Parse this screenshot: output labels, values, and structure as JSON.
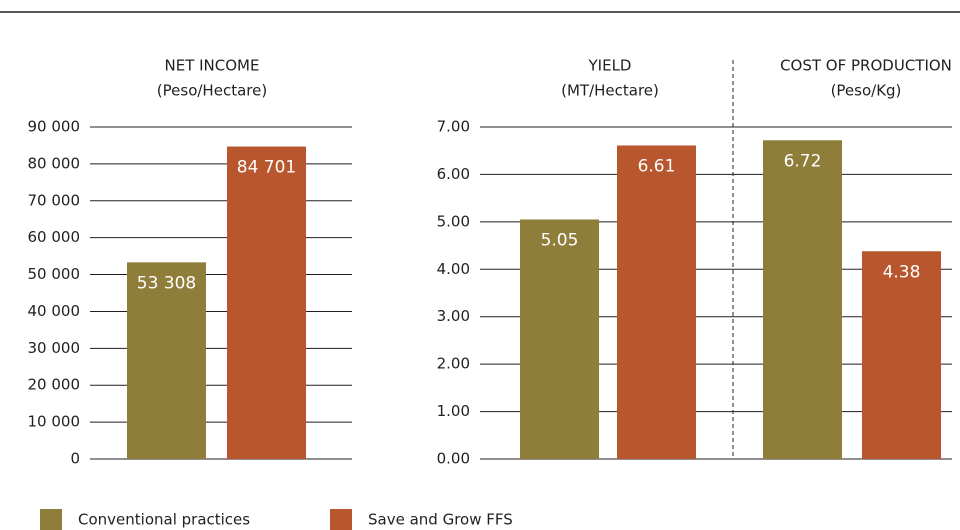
{
  "chart_data": [
    {
      "type": "bar",
      "title": "NET INCOME",
      "subtitle": "(Peso/Hectare)",
      "values": [
        53308,
        84701
      ],
      "value_labels": [
        "53 308",
        "84 701"
      ],
      "ylim": [
        0,
        90000
      ],
      "yticks": [
        0,
        {
          "value": 10000,
          "label": "10 000"
        },
        {
          "value": 20000,
          "label": "20 000"
        },
        {
          "value": 30000,
          "label": "30 000"
        },
        {
          "value": 40000,
          "label": "40 000"
        },
        {
          "value": 50000,
          "label": "50 000"
        },
        {
          "value": 60000,
          "label": "60 000"
        },
        {
          "value": 70000,
          "label": "70 000"
        },
        {
          "value": 80000,
          "label": "80 000"
        },
        {
          "value": 90000,
          "label": "90 000"
        }
      ]
    },
    {
      "type": "bar",
      "title": "YIELD",
      "subtitle": "(MT/Hectare)",
      "values": [
        5.05,
        6.61
      ],
      "value_labels": [
        "5.05",
        "6.61"
      ],
      "ylim": [
        0,
        7
      ],
      "yticks": [
        {
          "value": 0,
          "label": "0.00"
        },
        {
          "value": 1,
          "label": "1.00"
        },
        {
          "value": 2,
          "label": "2.00"
        },
        {
          "value": 3,
          "label": "3.00"
        },
        {
          "value": 4,
          "label": "4.00"
        },
        {
          "value": 5,
          "label": "5.00"
        },
        {
          "value": 6,
          "label": "6.00"
        },
        {
          "value": 7,
          "label": "7.00"
        }
      ]
    },
    {
      "type": "bar",
      "title": "COST OF PRODUCTION",
      "subtitle": "(Peso/Kg)",
      "values": [
        6.72,
        4.38
      ],
      "value_labels": [
        "6.72",
        "4.38"
      ],
      "ylim": [
        0,
        7
      ]
    }
  ],
  "legend": {
    "series": [
      {
        "name": "Conventional practices",
        "color": "#8f7d3a"
      },
      {
        "name": "Save and Grow FFS",
        "color": "#b8572e"
      }
    ]
  }
}
